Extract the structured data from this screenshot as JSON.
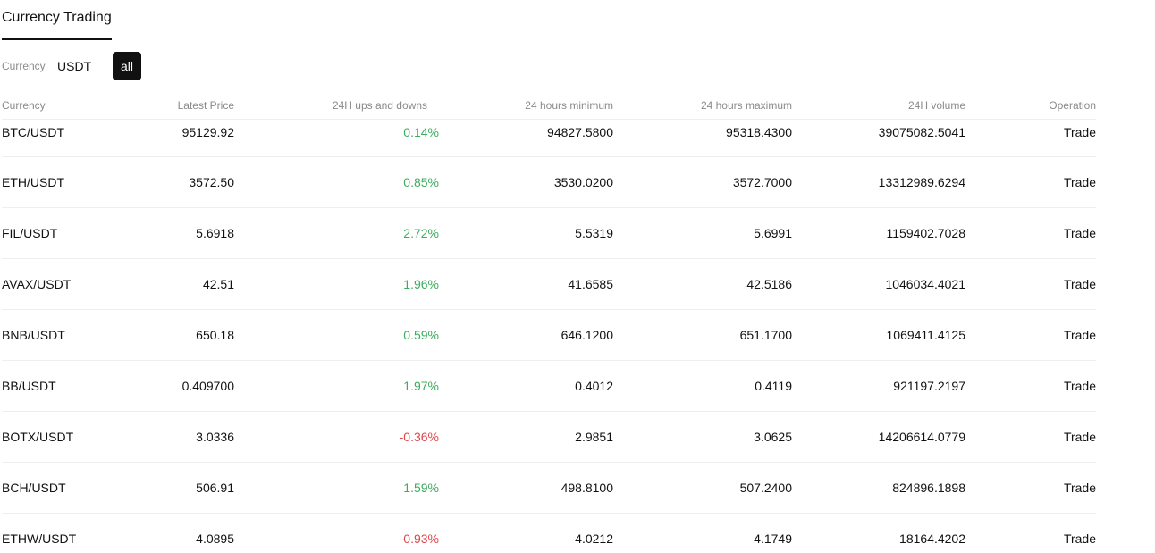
{
  "header": {
    "title": "Currency Trading"
  },
  "filter": {
    "label": "Currency",
    "value": "USDT",
    "all_button": "all"
  },
  "table": {
    "columns": [
      "Currency",
      "Latest Price",
      "24H ups and downs",
      "24 hours minimum",
      "24 hours maximum",
      "24H volume",
      "Operation"
    ],
    "rows": [
      {
        "pair": "BTC/USDT",
        "price": "95129.92",
        "change": "0.14%",
        "direction": "up",
        "min": "94827.5800",
        "max": "95318.4300",
        "volume": "39075082.5041",
        "action": "Trade"
      },
      {
        "pair": "ETH/USDT",
        "price": "3572.50",
        "change": "0.85%",
        "direction": "up",
        "min": "3530.0200",
        "max": "3572.7000",
        "volume": "13312989.6294",
        "action": "Trade"
      },
      {
        "pair": "FIL/USDT",
        "price": "5.6918",
        "change": "2.72%",
        "direction": "up",
        "min": "5.5319",
        "max": "5.6991",
        "volume": "1159402.7028",
        "action": "Trade"
      },
      {
        "pair": "AVAX/USDT",
        "price": "42.51",
        "change": "1.96%",
        "direction": "up",
        "min": "41.6585",
        "max": "42.5186",
        "volume": "1046034.4021",
        "action": "Trade"
      },
      {
        "pair": "BNB/USDT",
        "price": "650.18",
        "change": "0.59%",
        "direction": "up",
        "min": "646.1200",
        "max": "651.1700",
        "volume": "1069411.4125",
        "action": "Trade"
      },
      {
        "pair": "BB/USDT",
        "price": "0.409700",
        "change": "1.97%",
        "direction": "up",
        "min": "0.4012",
        "max": "0.4119",
        "volume": "921197.2197",
        "action": "Trade"
      },
      {
        "pair": "BOTX/USDT",
        "price": "3.0336",
        "change": "-0.36%",
        "direction": "down",
        "min": "2.9851",
        "max": "3.0625",
        "volume": "14206614.0779",
        "action": "Trade"
      },
      {
        "pair": "BCH/USDT",
        "price": "506.91",
        "change": "1.59%",
        "direction": "up",
        "min": "498.8100",
        "max": "507.2400",
        "volume": "824896.1898",
        "action": "Trade"
      },
      {
        "pair": "ETHW/USDT",
        "price": "4.0895",
        "change": "-0.93%",
        "direction": "down",
        "min": "4.0212",
        "max": "4.1749",
        "volume": "18164.4202",
        "action": "Trade"
      }
    ]
  },
  "colors": {
    "up": "#3dac5e",
    "down": "#e0474c",
    "accent": "#111111"
  }
}
